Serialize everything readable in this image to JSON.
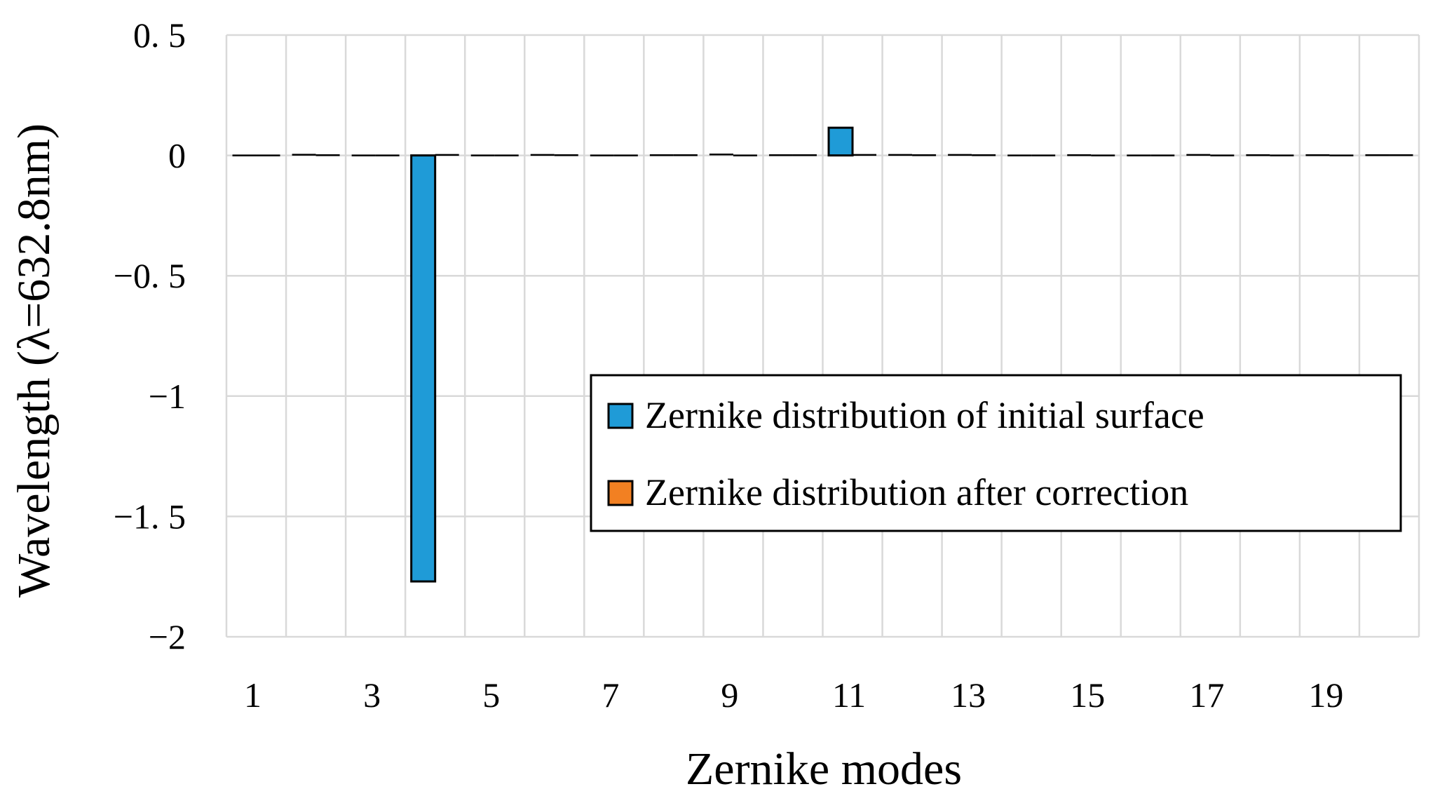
{
  "chart_data": {
    "type": "bar",
    "categories": [
      1,
      2,
      3,
      4,
      5,
      6,
      7,
      8,
      9,
      10,
      11,
      12,
      13,
      14,
      15,
      16,
      17,
      18,
      19,
      20
    ],
    "x_tick_labels": [
      "1",
      "3",
      "5",
      "7",
      "9",
      "11",
      "13",
      "15",
      "17",
      "19"
    ],
    "y_tick_labels": [
      "0. 5",
      "0",
      "−0. 5",
      "−1",
      "−1. 5",
      "−2"
    ],
    "y_tick_values": [
      0.5,
      0,
      -0.5,
      -1,
      -1.5,
      -2
    ],
    "ylim": [
      -2,
      0.5
    ],
    "grid": true,
    "legend_position": "center-right",
    "xlabel": "Zernike modes",
    "ylabel": "Wavelength (λ=632.8nm)",
    "series": [
      {
        "name": "Zernike distribution of initial surface",
        "color": "#1f9bd7",
        "values": [
          0,
          0.003,
          -0.002,
          -1.77,
          -0.003,
          0.002,
          -0.002,
          0.001,
          0.004,
          0.001,
          0.115,
          0.002,
          0.002,
          -0.005,
          0.001,
          -0.002,
          0.002,
          0.001,
          0.001,
          0.001
        ]
      },
      {
        "name": "Zernike distribution after correction",
        "color": "#f28022",
        "values": [
          0,
          0.001,
          -0.001,
          0.002,
          -0.001,
          0.001,
          -0.001,
          0.001,
          -0.002,
          0.001,
          0.002,
          0.001,
          0.001,
          -0.001,
          -0.001,
          -0.001,
          -0.001,
          -0.001,
          -0.001,
          0.001
        ]
      }
    ]
  }
}
